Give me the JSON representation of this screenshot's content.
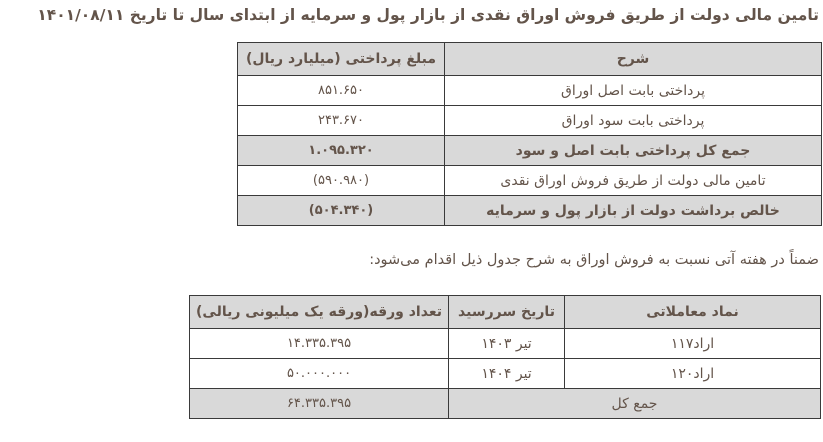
{
  "page": {
    "title": "تامین مالی دولت از طریق فروش اوراق نقدی از بازار پول و سرمایه از ابتدای سال تا تاریخ ۱۴۰۱/۰۸/۱۱",
    "note": "ضمناً در هفته آتی نسبت به فروش اوراق به شرح جدول ذیل اقدام می‌شود:"
  },
  "colors": {
    "text": "#63544a",
    "border": "#3a3a3a",
    "highlight_bg": "#d9d9d9",
    "page_bg": "#ffffff"
  },
  "payments_table": {
    "headers": [
      "شرح",
      "مبلغ پرداختی (میلیارد ریال)"
    ],
    "rows": [
      {
        "label": "پرداختی بابت اصل اوراق",
        "value": "۸۵۱.۶۵۰",
        "highlight": false,
        "bold": false
      },
      {
        "label": "پرداختی بابت سود اوراق",
        "value": "۲۴۳.۶۷۰",
        "highlight": false,
        "bold": false
      },
      {
        "label": "جمع کل پرداختی بابت اصل و سود",
        "value": "۱.۰۹۵.۳۲۰",
        "highlight": true,
        "bold": true
      },
      {
        "label": "تامین مالی دولت از طریق فروش اوراق نقدی",
        "value": "(۵۹۰.۹۸۰)",
        "highlight": false,
        "bold": false
      },
      {
        "label": "خالص برداشت دولت از بازار پول و سرمایه",
        "value": "(۵۰۴.۳۴۰)",
        "highlight": true,
        "bold": true
      }
    ]
  },
  "upcoming_table": {
    "headers": [
      "نماد معاملاتی",
      "تاریخ سررسید",
      "تعداد ورقه(ورقه یک میلیونی ریالی)"
    ],
    "rows": [
      {
        "symbol": "اراد۱۱۷",
        "maturity": "تیر ۱۴۰۳",
        "count": "۱۴.۳۳۵.۳۹۵"
      },
      {
        "symbol": "اراد۱۲۰",
        "maturity": "تیر ۱۴۰۴",
        "count": "۵۰.۰۰۰.۰۰۰"
      }
    ],
    "total": {
      "label": "جمع کل",
      "value": "۶۴.۳۳۵.۳۹۵"
    }
  }
}
